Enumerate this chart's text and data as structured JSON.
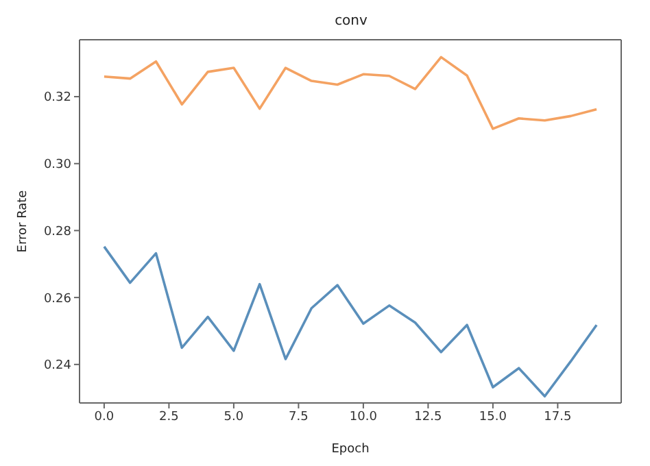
{
  "chart_data": {
    "type": "line",
    "title": "conv",
    "xlabel": "Epoch",
    "ylabel": "Error Rate",
    "x": [
      0,
      1,
      2,
      3,
      4,
      5,
      6,
      7,
      8,
      9,
      10,
      11,
      12,
      13,
      14,
      15,
      16,
      17,
      18,
      19
    ],
    "series": [
      {
        "color": "#5a8fbb",
        "values": [
          0.2752,
          0.2644,
          0.2732,
          0.245,
          0.2542,
          0.2441,
          0.264,
          0.2416,
          0.2568,
          0.2637,
          0.2522,
          0.2576,
          0.2525,
          0.2437,
          0.2518,
          0.2332,
          0.2389,
          0.2305,
          0.2409,
          0.2518
        ]
      },
      {
        "color": "#f4a262",
        "values": [
          0.326,
          0.3254,
          0.3305,
          0.3177,
          0.3274,
          0.3286,
          0.3164,
          0.3286,
          0.3247,
          0.3236,
          0.3267,
          0.3262,
          0.3223,
          0.3318,
          0.3263,
          0.3104,
          0.3135,
          0.3129,
          0.3142,
          0.3162
        ]
      }
    ],
    "xlim": [
      -0.95,
      19.95
    ],
    "xticks": [
      {
        "value": 0,
        "label": "0.0"
      },
      {
        "value": 2.5,
        "label": "2.5"
      },
      {
        "value": 5,
        "label": "5.0"
      },
      {
        "value": 7.5,
        "label": "7.5"
      },
      {
        "value": 10,
        "label": "10.0"
      },
      {
        "value": 12.5,
        "label": "12.5"
      },
      {
        "value": 15,
        "label": "15.0"
      },
      {
        "value": 17.5,
        "label": "17.5"
      }
    ],
    "ylim": [
      0.2285,
      0.337
    ],
    "yticks": [
      {
        "value": 0.24,
        "label": "0.24"
      },
      {
        "value": 0.26,
        "label": "0.26"
      },
      {
        "value": 0.28,
        "label": "0.28"
      },
      {
        "value": 0.3,
        "label": "0.30"
      },
      {
        "value": 0.32,
        "label": "0.32"
      }
    ],
    "grid": false,
    "legend": false,
    "marker": "none",
    "line_style": "solid"
  }
}
